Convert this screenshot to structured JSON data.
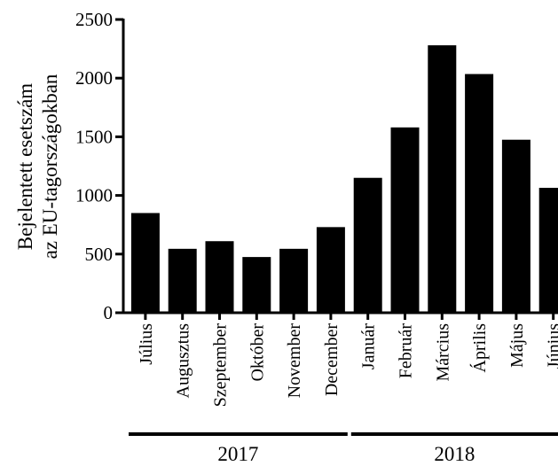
{
  "chart_data": {
    "type": "bar",
    "ylabel_line1": "Bejelentett esetszám",
    "ylabel_line2": "az EU-tagországokban",
    "categories": [
      "Július",
      "Augusztus",
      "Szeptember",
      "Október",
      "November",
      "December",
      "Január",
      "Február",
      "Március",
      "Április",
      "Május",
      "Június"
    ],
    "values": [
      850,
      545,
      610,
      475,
      545,
      730,
      1150,
      1580,
      2280,
      2035,
      1475,
      1065
    ],
    "ylim": [
      0,
      2500
    ],
    "yticks": [
      "0",
      "500",
      "1000",
      "1500",
      "2000",
      "2500"
    ],
    "groups": [
      {
        "label": "2017",
        "categories": [
          "Július",
          "Augusztus",
          "Szeptember",
          "Október",
          "November",
          "December"
        ]
      },
      {
        "label": "2018",
        "categories": [
          "Január",
          "Február",
          "Március",
          "Április",
          "Május",
          "Június"
        ]
      }
    ],
    "bar_color": "#000000",
    "grid": false,
    "legend": "none"
  }
}
